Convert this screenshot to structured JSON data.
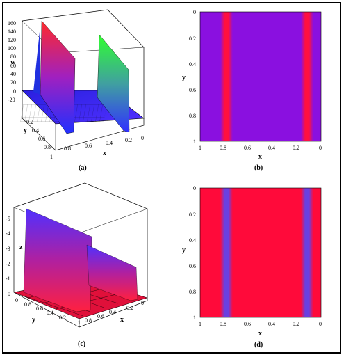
{
  "figure": {
    "panel_a": {
      "caption": "(a)",
      "zlabel": "w",
      "xlabel": "x",
      "ylabel": "y",
      "z_ticks": [
        "160",
        "140",
        "120",
        "100",
        "80",
        "60",
        "40",
        "20",
        "0",
        "-20"
      ],
      "x_ticks": [
        "0.8",
        "0.6",
        "0.4",
        "0.2",
        "0"
      ],
      "y_ticks": [
        "1",
        "0.8",
        "0.6",
        "0.4",
        "0.2"
      ]
    },
    "panel_b": {
      "caption": "(b)",
      "xlabel": "x",
      "ylabel": "y",
      "x_ticks": [
        "1",
        "0.8",
        "0.6",
        "0.4",
        "0.2",
        "0"
      ],
      "y_ticks": [
        "0",
        "0.2",
        "0.4",
        "0.6",
        "0.8",
        "1"
      ]
    },
    "panel_c": {
      "caption": "(c)",
      "zlabel": "z",
      "xlabel": "x",
      "ylabel": "y",
      "z_ticks": [
        "-5",
        "-4",
        "-3",
        "-2",
        "-1",
        "0"
      ],
      "x_ticks": [
        "1",
        "0.8",
        "0.6",
        "0.4",
        "0.2",
        "0"
      ],
      "y_ticks": [
        "1",
        "0.8",
        "0.6",
        "0.4",
        "0.2",
        "0"
      ]
    },
    "panel_d": {
      "caption": "(d)",
      "xlabel": "x",
      "ylabel": "y",
      "x_ticks": [
        "1",
        "0.8",
        "0.6",
        "0.4",
        "0.2",
        "0"
      ],
      "y_ticks": [
        "0",
        "0.2",
        "0.4",
        "0.6",
        "0.8",
        "1"
      ]
    }
  },
  "colors": {
    "b_background": "#8a10e0",
    "b_stripe": "#ff1040",
    "d_background": "#ff0a3a",
    "d_stripe": "#7a3ae0"
  },
  "chart_data": [
    {
      "type": "surface",
      "panel": "(a)",
      "zlabel": "w",
      "zlim": [
        -20,
        160
      ],
      "peaks": [
        {
          "x": 0.8,
          "w": 160
        },
        {
          "x": 0.2,
          "w": 130
        }
      ]
    },
    {
      "type": "heatmap",
      "panel": "(b)",
      "xlim": [
        1,
        0
      ],
      "ylim": [
        0,
        1
      ],
      "stripes_x": [
        0.8,
        0.17
      ]
    },
    {
      "type": "surface",
      "panel": "(c)",
      "zlabel": "z",
      "zlim": [
        -5,
        0
      ],
      "troughs": [
        {
          "x": 0.8,
          "z": -5
        },
        {
          "x": 0.2,
          "z": -3
        }
      ]
    },
    {
      "type": "heatmap",
      "panel": "(d)",
      "xlim": [
        1,
        0
      ],
      "ylim": [
        0,
        1
      ],
      "stripes_x": [
        0.8,
        0.17
      ]
    }
  ]
}
